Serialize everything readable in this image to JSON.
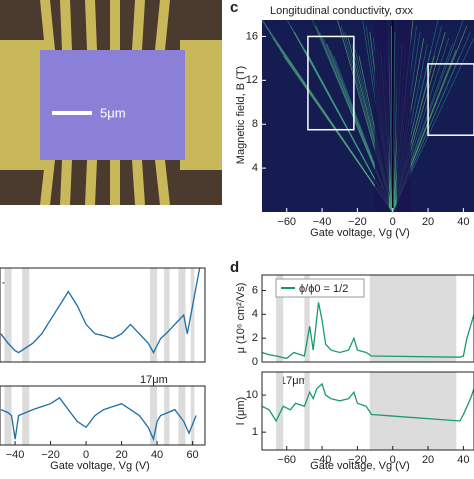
{
  "micrograph": {
    "scale_label": "5μm"
  },
  "chart_data": [
    {
      "type": "heatmap",
      "panel_label": "c",
      "title": "Longitudinal conductivity, σxx",
      "xlabel": "Gate voltage, Vg (V)",
      "ylabel": "Magnetic field, B (T)",
      "xlim": [
        -74,
        46
      ],
      "ylim": [
        0,
        17.5
      ],
      "xticks": [
        {
          "value": -60,
          "label": "−60"
        },
        {
          "value": -40,
          "label": "−40"
        },
        {
          "value": -20,
          "label": "−20"
        },
        0,
        20,
        40
      ],
      "yticks": [
        4,
        8,
        12,
        16
      ],
      "highlight_boxes": [
        {
          "x": [
            -48,
            -22
          ],
          "y": [
            7.5,
            16
          ]
        },
        {
          "x": [
            20,
            46
          ],
          "y": [
            7,
            13.5
          ]
        }
      ]
    },
    {
      "type": "line",
      "annotation": "T",
      "xlim": [
        -48.5,
        67
      ],
      "ylim": [
        0,
        10
      ],
      "shaded_ranges": [
        [
          -46,
          -42
        ],
        [
          -36,
          -32
        ],
        [
          36,
          40
        ],
        [
          44,
          47
        ],
        [
          52,
          56
        ],
        [
          59,
          61
        ]
      ],
      "x": [
        -48,
        -44,
        -40,
        -38,
        -34,
        -30,
        -25,
        -20,
        -15,
        -10,
        -5,
        0,
        5,
        10,
        15,
        20,
        25,
        30,
        35,
        38,
        42,
        45,
        50,
        55,
        57,
        60,
        62,
        64
      ],
      "series": [
        {
          "color": "#1d6fa5",
          "values": [
            3,
            2,
            1.2,
            1,
            1.5,
            2,
            3,
            4.5,
            6,
            7.5,
            6,
            4,
            3,
            2.8,
            2.5,
            3,
            4,
            3,
            2,
            1,
            2.5,
            3,
            4,
            5,
            3,
            6,
            8,
            10
          ]
        }
      ]
    },
    {
      "type": "line",
      "annotation": "17μm",
      "xlabel": "Gate voltage, Vg (V)",
      "xlim": [
        -48.5,
        67
      ],
      "ylim": [
        0,
        10
      ],
      "xticks": [
        {
          "value": -40,
          "label": "−40"
        },
        {
          "value": -20,
          "label": "−20"
        },
        0,
        20,
        40,
        60
      ],
      "shaded_ranges": [
        [
          -46,
          -42
        ],
        [
          -36,
          -32
        ],
        [
          36,
          40
        ],
        [
          44,
          47
        ],
        [
          52,
          56
        ],
        [
          59,
          61
        ]
      ],
      "x": [
        -48,
        -44,
        -42,
        -40,
        -38,
        -34,
        -30,
        -25,
        -20,
        -15,
        -10,
        -5,
        0,
        5,
        10,
        15,
        20,
        25,
        30,
        35,
        38,
        40,
        42,
        46,
        50,
        55,
        58,
        62
      ],
      "series": [
        {
          "color": "#1d6fa5",
          "values": [
            6,
            5.5,
            5,
            1,
            5,
            5.5,
            6,
            6.5,
            7,
            8,
            6,
            4,
            3,
            5,
            6,
            6.5,
            7,
            6,
            5,
            3,
            1,
            4,
            5,
            5.5,
            6,
            4,
            2,
            5
          ]
        }
      ]
    },
    {
      "type": "line",
      "panel_label": "d",
      "ylabel": "μ (10⁶ cm²/Vs)",
      "xlim": [
        -74,
        46
      ],
      "ylim": [
        0,
        7.3
      ],
      "yticks": [
        0,
        2,
        4,
        6
      ],
      "shaded_ranges": [
        [
          -66,
          -62
        ],
        [
          -50,
          -47
        ],
        [
          -13,
          36
        ]
      ],
      "x": [
        -74,
        -70,
        -66,
        -60,
        -56,
        -50,
        -47,
        -45,
        -42,
        -40,
        -38,
        -35,
        -30,
        -25,
        -22,
        -20,
        -15,
        -12,
        38,
        40,
        42,
        44,
        46
      ],
      "series": [
        {
          "name": "ϕ/ϕ0 = 1/2",
          "color": "#1a9a6c",
          "values": [
            0.8,
            0.6,
            0.5,
            0.3,
            0.8,
            0.5,
            3,
            1,
            5,
            3.5,
            1.5,
            1,
            0.8,
            1,
            2,
            1,
            0.8,
            0.5,
            0.4,
            0.5,
            2,
            3,
            4
          ]
        }
      ]
    },
    {
      "type": "line",
      "annotation": "17μm",
      "xlabel": "Gate voltage, Vg (V)",
      "ylabel": "l (μm)",
      "log_y": true,
      "xlim": [
        -74,
        46
      ],
      "ylim": [
        0.33,
        42
      ],
      "xticks": [
        {
          "value": -60,
          "label": "−60"
        },
        {
          "value": -40,
          "label": "−40"
        },
        {
          "value": -20,
          "label": "−20"
        },
        0,
        20,
        40
      ],
      "yticks": [
        1,
        10
      ],
      "shaded_ranges": [
        [
          -66,
          -62
        ],
        [
          -50,
          -47
        ],
        [
          -13,
          36
        ]
      ],
      "x": [
        -74,
        -70,
        -66,
        -62,
        -58,
        -55,
        -50,
        -47,
        -45,
        -43,
        -40,
        -38,
        -35,
        -30,
        -25,
        -22,
        -20,
        -15,
        -12,
        38,
        40,
        44,
        46
      ],
      "series": [
        {
          "color": "#1a9a6c",
          "values": [
            5,
            4,
            2,
            5,
            4,
            6,
            5,
            12,
            8,
            15,
            20,
            10,
            8,
            7,
            8,
            12,
            6,
            5,
            3,
            2,
            3,
            8,
            15
          ]
        }
      ]
    }
  ]
}
